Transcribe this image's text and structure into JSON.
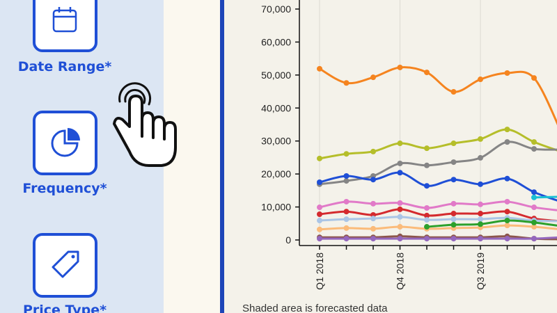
{
  "sidebar": {
    "filters": [
      {
        "label": "Date Range*"
      },
      {
        "label": "Frequency*"
      },
      {
        "label": "Price Type*"
      }
    ]
  },
  "chart_data": {
    "type": "line",
    "categories": [
      "Q1 2018",
      null,
      null,
      "Q4 2018",
      null,
      null,
      "Q3 2019",
      null,
      null,
      null
    ],
    "ylim": [
      0,
      70000
    ],
    "yticks": [
      0,
      {
        "value": 10000,
        "label": "10,000"
      },
      {
        "value": 20000,
        "label": "20,000"
      },
      {
        "value": 30000,
        "label": "30,000"
      },
      {
        "value": 40000,
        "label": "40,000"
      },
      {
        "value": 50000,
        "label": "50,000"
      },
      {
        "value": 60000,
        "label": "60,000"
      },
      {
        "value": 70000,
        "label": "70,000"
      }
    ],
    "series": [
      {
        "color": "#f5841f",
        "values": [
          51900,
          47600,
          49300,
          52300,
          50800,
          44900,
          48700,
          50600,
          49100,
          33000
        ]
      },
      {
        "color": "#b5be2a",
        "values": [
          24700,
          26100,
          26800,
          29300,
          27800,
          29300,
          30600,
          33500,
          29700,
          26800
        ]
      },
      {
        "color": "#858585",
        "values": [
          16900,
          17900,
          19400,
          23200,
          22600,
          23600,
          24900,
          29700,
          27600,
          27400
        ]
      },
      {
        "color": "#1f4fd6",
        "values": [
          17500,
          19400,
          18300,
          20400,
          16400,
          18300,
          16900,
          18600,
          14500,
          11600
        ]
      },
      {
        "color": "#1bbfd4",
        "values": [
          null,
          null,
          null,
          null,
          null,
          null,
          null,
          null,
          12900,
          13100
        ]
      },
      {
        "color": "#e17ac8",
        "values": [
          9900,
          11600,
          11000,
          11200,
          9700,
          11000,
          10800,
          11600,
          9900,
          8900
        ]
      },
      {
        "color": "#d42a2e",
        "values": [
          7800,
          8600,
          7600,
          9300,
          7400,
          8000,
          8000,
          8600,
          6500,
          5700
        ]
      },
      {
        "color": "#aac5e6",
        "values": [
          5900,
          6300,
          6500,
          7000,
          6100,
          6300,
          6300,
          6700,
          5900,
          5700
        ]
      },
      {
        "color": "#fbbb7a",
        "values": [
          3200,
          3600,
          3400,
          4000,
          3400,
          3600,
          3800,
          4400,
          4000,
          3200
        ]
      },
      {
        "color": "#2ca02c",
        "values": [
          null,
          null,
          null,
          null,
          4000,
          4600,
          4800,
          5900,
          5300,
          4200
        ]
      },
      {
        "color": "#8c564b",
        "values": [
          800,
          800,
          800,
          1100,
          800,
          800,
          800,
          1100,
          400,
          200
        ]
      },
      {
        "color": "#9467bd",
        "values": [
          400,
          400,
          400,
          400,
          400,
          400,
          400,
          400,
          400,
          800
        ]
      }
    ]
  },
  "note": "Shaded area is forecasted data"
}
